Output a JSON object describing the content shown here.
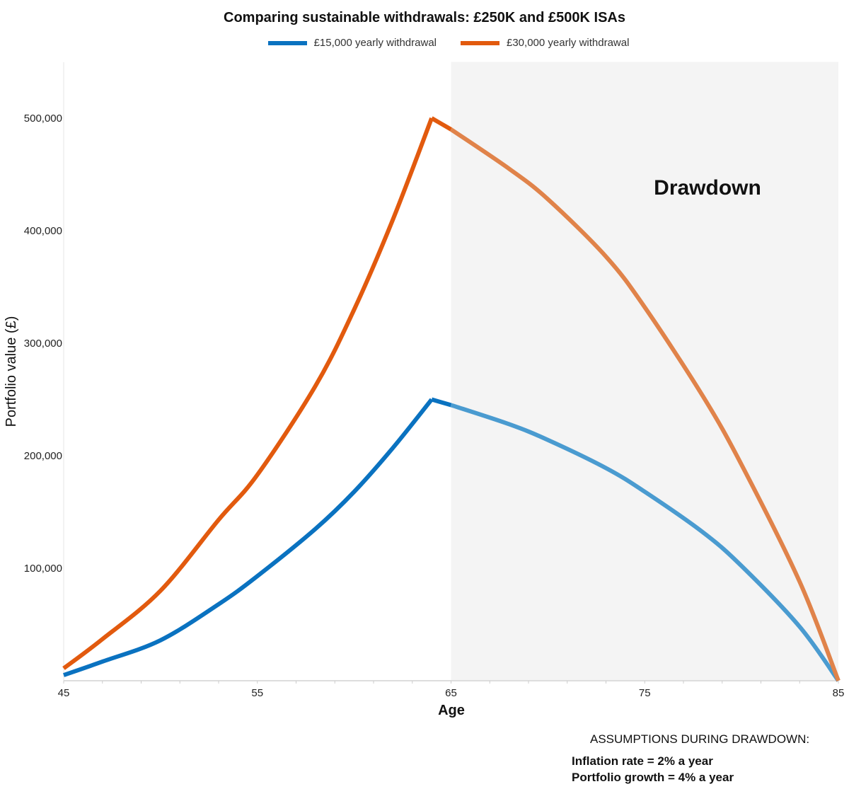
{
  "chart_data": {
    "type": "line",
    "title": "Comparing sustainable withdrawals: £250K and £500K ISAs",
    "xlabel": "Age",
    "ylabel": "Portfolio value (£)",
    "xlim": [
      45,
      85
    ],
    "ylim": [
      0,
      550000
    ],
    "x_ticks": [
      "45",
      "55",
      "65",
      "75",
      "85"
    ],
    "y_ticks": [
      "100,000",
      "200,000",
      "300,000",
      "400,000",
      "500,000"
    ],
    "grid": false,
    "legend_position": "top-center",
    "shaded_region": {
      "label": "Drawdown",
      "x_from": 65,
      "x_to": 85,
      "color": "#f4f4f4"
    },
    "series": [
      {
        "name": "£15,000 yearly withdrawal",
        "color": "#0a72c0",
        "drawdown_color": "#4a9bd0",
        "x": [
          45,
          47,
          50,
          53,
          55,
          58,
          60,
          62,
          64,
          65,
          68,
          70,
          73,
          75,
          78,
          80,
          83,
          85
        ],
        "y": [
          5000,
          17000,
          36000,
          68000,
          93000,
          135000,
          168000,
          207000,
          250000,
          245000,
          228000,
          214000,
          189000,
          168000,
          132000,
          102000,
          48000,
          0
        ]
      },
      {
        "name": "£30,000 yearly withdrawal",
        "color": "#e25a0e",
        "drawdown_color": "#e0834a",
        "x": [
          45,
          47,
          50,
          53,
          55,
          58,
          60,
          62,
          64,
          65,
          68,
          70,
          73,
          75,
          78,
          80,
          83,
          85
        ],
        "y": [
          11000,
          37000,
          80000,
          143000,
          183000,
          262000,
          330000,
          410000,
          500000,
          490000,
          455000,
          428000,
          377000,
          332000,
          253000,
          192000,
          88000,
          0
        ]
      }
    ]
  },
  "assumptions": {
    "heading": "ASSUMPTIONS DURING DRAWDOWN:",
    "items": [
      "Inflation rate = 2% a year",
      "Portfolio growth = 4% a year"
    ]
  }
}
